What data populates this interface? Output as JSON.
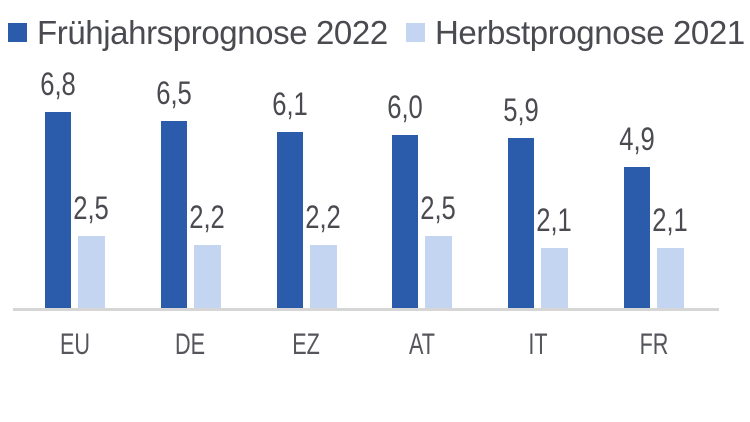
{
  "chart_data": {
    "type": "bar",
    "title": "",
    "xlabel": "",
    "ylabel": "",
    "categories": [
      "EU",
      "DE",
      "EZ",
      "AT",
      "IT",
      "FR"
    ],
    "series": [
      {
        "name": "Frühjahrsprognose 2022",
        "color": "#2b5cab",
        "values": [
          6.8,
          6.5,
          6.1,
          6.0,
          5.9,
          4.9
        ],
        "labels": [
          "6,8",
          "6,5",
          "6,1",
          "6,0",
          "5,9",
          "4,9"
        ]
      },
      {
        "name": "Herbstprognose 2021",
        "color": "#c3d5f1",
        "values": [
          2.5,
          2.2,
          2.2,
          2.5,
          2.1,
          2.1
        ],
        "labels": [
          "2,5",
          "2,2",
          "2,2",
          "2,5",
          "2,1",
          "2,1"
        ]
      }
    ],
    "ylim": [
      0,
      7
    ],
    "grid": false,
    "legend_position": "top",
    "value_labels_shown": true,
    "decimal_separator": ","
  },
  "styles": {
    "background": "#ffffff",
    "axis_line_color": "#d6d6d6",
    "value_text_color": "#4a4b50",
    "category_text_color": "#54565c",
    "legend_text_color": "#4a4b50"
  }
}
